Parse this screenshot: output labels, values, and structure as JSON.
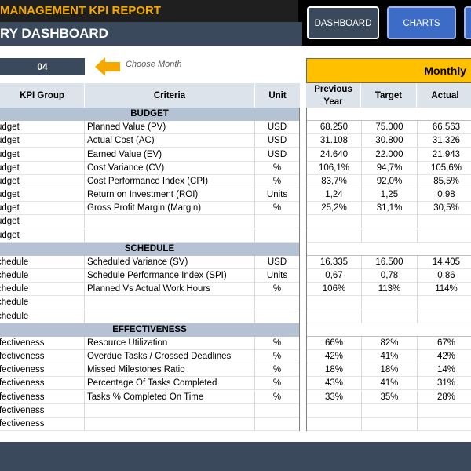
{
  "header": {
    "report_title": "MANAGEMENT KPI REPORT",
    "dashboard_title": "RY DASHBOARD",
    "nav": [
      {
        "label": "DASHBOARD",
        "active": true
      },
      {
        "label": "CHARTS",
        "active": false
      },
      {
        "label": "",
        "active": false
      }
    ]
  },
  "controls": {
    "month_value": "04",
    "choose_month_label": "Choose Month",
    "period_label": "Monthly"
  },
  "columns": {
    "group": "KPI Group",
    "criteria": "Criteria",
    "unit": "Unit",
    "previous_year": "Previous Year",
    "target": "Target",
    "actual": "Actual"
  },
  "sections": [
    {
      "title": "BUDGET",
      "rows": [
        {
          "group": "udget",
          "criteria": "Planned Value (PV)",
          "unit": "USD",
          "prev": "68.250",
          "target": "75.000",
          "actual": "66.563"
        },
        {
          "group": "udget",
          "criteria": "Actual Cost (AC)",
          "unit": "USD",
          "prev": "31.108",
          "target": "30.800",
          "actual": "31.326"
        },
        {
          "group": "udget",
          "criteria": "Earned Value (EV)",
          "unit": "USD",
          "prev": "24.640",
          "target": "22.000",
          "actual": "21.943"
        },
        {
          "group": "udget",
          "criteria": "Cost Variance (CV)",
          "unit": "%",
          "prev": "106,1%",
          "target": "94,7%",
          "actual": "105,6%"
        },
        {
          "group": "udget",
          "criteria": "Cost Performance Index (CPI)",
          "unit": "%",
          "prev": "83,7%",
          "target": "92,0%",
          "actual": "85,5%"
        },
        {
          "group": "udget",
          "criteria": "Return on Investment (ROI)",
          "unit": "Units",
          "prev": "1,24",
          "target": "1,25",
          "actual": "0,98"
        },
        {
          "group": "udget",
          "criteria": "Gross Profit Margin (Margin)",
          "unit": "%",
          "prev": "25,2%",
          "target": "31,1%",
          "actual": "30,5%"
        },
        {
          "group": "udget",
          "criteria": "",
          "unit": "",
          "prev": "",
          "target": "",
          "actual": ""
        },
        {
          "group": "udget",
          "criteria": "",
          "unit": "",
          "prev": "",
          "target": "",
          "actual": ""
        }
      ]
    },
    {
      "title": "SCHEDULE",
      "rows": [
        {
          "group": "chedule",
          "criteria": "Scheduled Variance (SV)",
          "unit": "USD",
          "prev": "16.335",
          "target": "16.500",
          "actual": "14.405"
        },
        {
          "group": "chedule",
          "criteria": "Schedule Performance Index (SPI)",
          "unit": "Units",
          "prev": "0,67",
          "target": "0,78",
          "actual": "0,86"
        },
        {
          "group": "chedule",
          "criteria": "Planned Vs Actual Work Hours",
          "unit": "%",
          "prev": "106%",
          "target": "113%",
          "actual": "114%"
        },
        {
          "group": "chedule",
          "criteria": "",
          "unit": "",
          "prev": "",
          "target": "",
          "actual": ""
        },
        {
          "group": "chedule",
          "criteria": "",
          "unit": "",
          "prev": "",
          "target": "",
          "actual": ""
        }
      ]
    },
    {
      "title": "EFFECTIVENESS",
      "rows": [
        {
          "group": "ffectiveness",
          "criteria": "Resource Utilization",
          "unit": "%",
          "prev": "66%",
          "target": "82%",
          "actual": "67%"
        },
        {
          "group": "ffectiveness",
          "criteria": "Overdue Tasks / Crossed Deadlines",
          "unit": "%",
          "prev": "42%",
          "target": "41%",
          "actual": "42%"
        },
        {
          "group": "ffectiveness",
          "criteria": "Missed Milestones Ratio",
          "unit": "%",
          "prev": "18%",
          "target": "18%",
          "actual": "14%"
        },
        {
          "group": "ffectiveness",
          "criteria": "Percentage Of Tasks Completed",
          "unit": "%",
          "prev": "43%",
          "target": "41%",
          "actual": "31%"
        },
        {
          "group": "ffectiveness",
          "criteria": "Tasks % Completed On Time",
          "unit": "%",
          "prev": "33%",
          "target": "35%",
          "actual": "28%"
        },
        {
          "group": "ffectiveness",
          "criteria": "",
          "unit": "",
          "prev": "",
          "target": "",
          "actual": ""
        },
        {
          "group": "ffectiveness",
          "criteria": "",
          "unit": "",
          "prev": "",
          "target": "",
          "actual": ""
        }
      ]
    }
  ],
  "colors": {
    "accent": "#ffc000",
    "title_text": "#f5a800",
    "navy": "#3a4a5c",
    "section_band": "#b4c2d3",
    "nav_button": "#3c6cc8",
    "arrow": "#f5a800"
  },
  "icons": {
    "month_pointer": "left-arrow-icon"
  }
}
